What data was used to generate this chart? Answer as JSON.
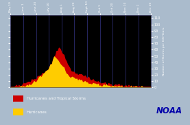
{
  "background_color": "#000000",
  "outer_bg": "#aabbcc",
  "ylabel": "Number of Storms per 100 Years",
  "ylim": [
    0,
    115
  ],
  "yticks": [
    0,
    10,
    20,
    30,
    40,
    50,
    60,
    70,
    80,
    90,
    100,
    110
  ],
  "xtick_labels": [
    "May 10",
    "June 1",
    "June 20",
    "July 10",
    "Aug 1",
    "Aug 20",
    "Sept 10",
    "Oct 1",
    "Oct 20",
    "Nov 10",
    "Dec 1",
    "Dec 20"
  ],
  "gridline_color": "#2a2a6a",
  "legend_labels": [
    "Hurricanes and Tropical Storms",
    "Hurricanes"
  ],
  "legend_colors": [
    "#cc0000",
    "#ffcc00"
  ],
  "noaa_text": "NOAA",
  "noaa_color": "#0000aa",
  "total_curve": [
    1,
    1,
    1,
    1,
    2,
    2,
    2,
    3,
    3,
    4,
    4,
    5,
    5,
    6,
    7,
    8,
    9,
    10,
    11,
    12,
    13,
    14,
    15,
    16,
    17,
    18,
    19,
    21,
    22,
    24,
    26,
    28,
    30,
    32,
    35,
    38,
    42,
    47,
    52,
    57,
    60,
    62,
    60,
    57,
    55,
    50,
    45,
    40,
    36,
    33,
    30,
    28,
    26,
    25,
    24,
    23,
    22,
    21,
    20,
    20,
    19,
    18,
    18,
    17,
    16,
    15,
    15,
    14,
    13,
    12,
    12,
    11,
    10,
    10,
    9,
    8,
    8,
    7,
    7,
    6,
    6,
    5,
    5,
    5,
    4,
    4,
    4,
    3,
    3,
    3,
    3,
    3,
    3,
    2,
    2,
    2,
    2,
    2,
    2,
    2,
    2,
    2,
    1,
    1,
    1,
    1,
    1,
    1,
    1,
    1,
    1,
    1,
    1,
    1,
    1,
    1,
    1,
    1,
    1,
    1
  ],
  "hurr_curve": [
    0,
    0,
    0,
    0,
    0,
    0,
    0,
    0,
    1,
    1,
    1,
    2,
    2,
    2,
    3,
    3,
    4,
    5,
    6,
    7,
    8,
    9,
    10,
    12,
    14,
    16,
    18,
    20,
    22,
    25,
    28,
    31,
    34,
    37,
    40,
    44,
    47,
    50,
    47,
    44,
    41,
    39,
    37,
    35,
    33,
    30,
    27,
    24,
    22,
    20,
    18,
    17,
    16,
    15,
    14,
    13,
    13,
    12,
    11,
    11,
    10,
    10,
    9,
    9,
    8,
    8,
    7,
    7,
    6,
    6,
    6,
    5,
    5,
    5,
    4,
    4,
    4,
    3,
    3,
    3,
    3,
    3,
    2,
    2,
    2,
    2,
    2,
    2,
    2,
    1,
    1,
    1,
    1,
    1,
    1,
    1,
    1,
    1,
    1,
    1,
    1,
    1,
    1,
    1,
    0,
    0,
    0,
    0,
    0,
    0,
    0,
    0,
    0,
    0,
    0,
    0,
    0,
    0,
    0,
    0
  ]
}
